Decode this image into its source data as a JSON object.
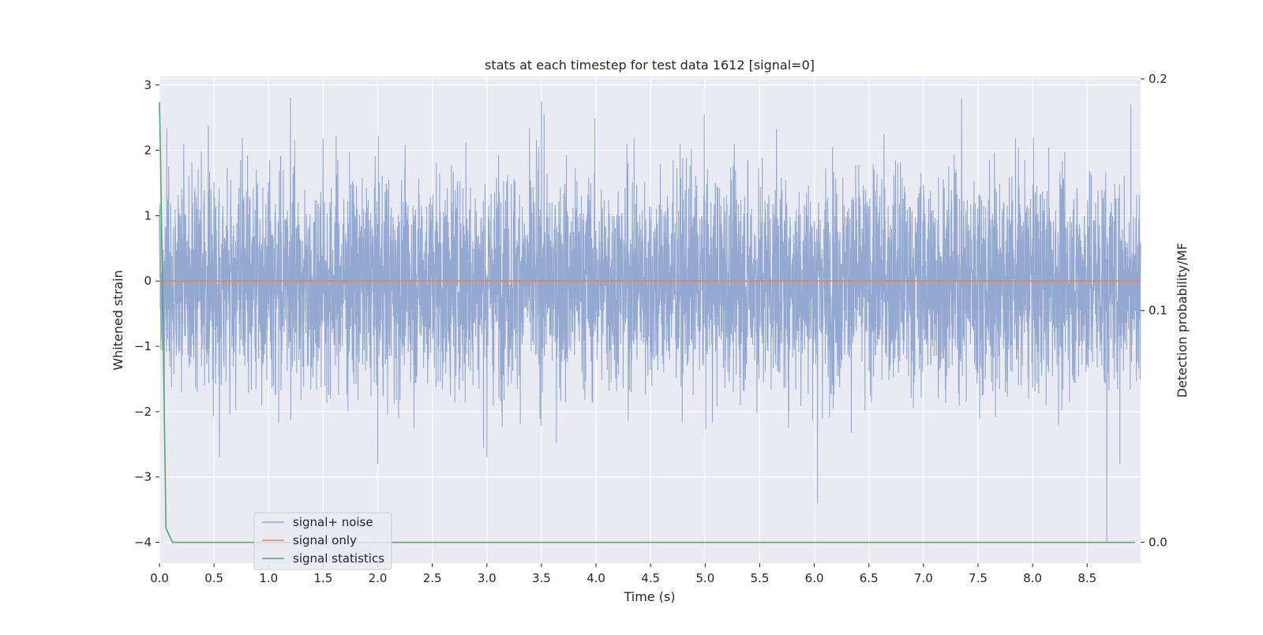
{
  "chart_data": {
    "type": "line",
    "title": "stats at each timestep for test data 1612 [signal=0]",
    "xlabel": "Time (s)",
    "ylabel": "Whitened strain",
    "y2label": "Detection probability/MF",
    "xlim": [
      0.0,
      8.99
    ],
    "ylim": [
      -4.32,
      3.13
    ],
    "y2lim": [
      -0.009,
      0.201
    ],
    "x_ticks": [
      0.0,
      0.5,
      1.0,
      1.5,
      2.0,
      2.5,
      3.0,
      3.5,
      4.0,
      4.5,
      5.0,
      5.5,
      6.0,
      6.5,
      7.0,
      7.5,
      8.0,
      8.5
    ],
    "x_tick_labels": [
      "0.0",
      "0.5",
      "1.0",
      "1.5",
      "2.0",
      "2.5",
      "3.0",
      "3.5",
      "4.0",
      "4.5",
      "5.0",
      "5.5",
      "6.0",
      "6.5",
      "7.0",
      "7.5",
      "8.0",
      "8.5"
    ],
    "y_ticks": [
      3,
      2,
      1,
      0,
      -1,
      -2,
      -3,
      -4
    ],
    "y_tick_labels": [
      "3",
      "2",
      "1",
      "0",
      "−1",
      "−2",
      "−3",
      "−4"
    ],
    "y2_ticks": [
      0.2,
      0.1,
      0.0
    ],
    "y2_tick_labels": [
      "0.2",
      "0.1",
      "0.0"
    ],
    "grid": true,
    "legend_position": "lower-left",
    "series": [
      {
        "name": "signal+ noise",
        "axis": "left",
        "color": "#8fa5cf",
        "kind": "dense noise trace (~4 samples per pixel), sample std ~0.85",
        "typical_range": [
          -2.0,
          2.0
        ],
        "peaks": [
          {
            "x": 1.2,
            "y": 2.8
          },
          {
            "x": 3.5,
            "y": 2.75
          },
          {
            "x": 7.35,
            "y": 2.8
          },
          {
            "x": 8.9,
            "y": 2.7
          },
          {
            "x": 0.55,
            "y": -2.7
          },
          {
            "x": 2.0,
            "y": -2.8
          },
          {
            "x": 3.0,
            "y": -2.7
          },
          {
            "x": 6.03,
            "y": -3.4
          },
          {
            "x": 8.68,
            "y": -4.0
          },
          {
            "x": 8.8,
            "y": -2.8
          }
        ]
      },
      {
        "name": "signal only",
        "axis": "left",
        "color": "#dd8452",
        "x": [
          0.0,
          8.99
        ],
        "y": [
          0.0,
          0.0
        ]
      },
      {
        "name": "signal statistics",
        "axis": "right",
        "color": "#55a868",
        "x": [
          0.0,
          0.01,
          0.06,
          0.12,
          0.2,
          1.0,
          2.0,
          3.0,
          4.0,
          5.0,
          6.0,
          7.0,
          8.0,
          8.94
        ],
        "y": [
          0.19,
          0.165,
          0.006,
          0.0,
          0.0,
          0.0,
          0.0,
          0.0,
          0.0,
          0.0,
          0.0,
          0.0,
          0.0,
          0.0
        ]
      }
    ]
  }
}
